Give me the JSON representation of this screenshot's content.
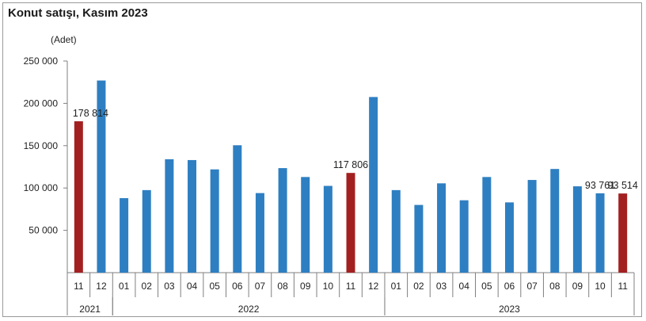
{
  "title": "Konut satışı, Kasım 2023",
  "colors": {
    "regular": "#2e7fc2",
    "highlight": "#a32021",
    "axis": "#7f7f7f"
  },
  "chart_data": {
    "type": "bar",
    "title": "Konut satışı, Kasım 2023",
    "ylabel": "(Adet)",
    "ylim": [
      0,
      250000
    ],
    "yticks": [
      50000,
      100000,
      150000,
      200000,
      250000
    ],
    "ytick_labels": [
      "50 000",
      "100 000",
      "150 000",
      "200 000",
      "250 000"
    ],
    "grid": false,
    "categories": [
      "11",
      "12",
      "01",
      "02",
      "03",
      "04",
      "05",
      "06",
      "07",
      "08",
      "09",
      "10",
      "11",
      "12",
      "01",
      "02",
      "03",
      "04",
      "05",
      "06",
      "07",
      "08",
      "09",
      "10",
      "11"
    ],
    "years": [
      {
        "label": "2021",
        "start": 0,
        "end": 1
      },
      {
        "label": "2022",
        "start": 2,
        "end": 13
      },
      {
        "label": "2023",
        "start": 14,
        "end": 24
      }
    ],
    "values": [
      178814,
      227000,
      88000,
      97500,
      134000,
      133000,
      122000,
      150500,
      94000,
      123500,
      113000,
      102500,
      117806,
      207500,
      97500,
      80000,
      105500,
      85500,
      113000,
      83000,
      109500,
      122500,
      102000,
      93761,
      93514
    ],
    "highlighted": [
      0,
      12,
      24
    ],
    "data_labels": [
      {
        "index": 0,
        "text": "178 814"
      },
      {
        "index": 12,
        "text": "117 806"
      },
      {
        "index": 23,
        "text": "93 761"
      },
      {
        "index": 24,
        "text": "93 514"
      }
    ]
  }
}
